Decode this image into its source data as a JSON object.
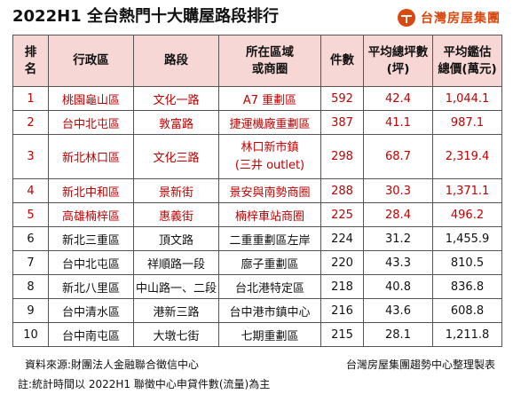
{
  "header": {
    "title": "2022H1 全台熱門十大購屋路段排行",
    "brand": "台灣房屋集團",
    "brand_color": "#d9480f"
  },
  "table": {
    "columns": [
      {
        "line1": "排",
        "line2": "名"
      },
      {
        "line1": "行政區",
        "line2": ""
      },
      {
        "line1": "路段",
        "line2": ""
      },
      {
        "line1": "所在區域",
        "line2": "或商圈"
      },
      {
        "line1": "件數",
        "line2": ""
      },
      {
        "line1": "平均總坪數",
        "line2": "(坪)"
      },
      {
        "line1": "平均鑑估",
        "line2": "總價(萬元)"
      }
    ],
    "header_bg": "#f6d7d5",
    "highlight_color": "#c00000",
    "rows": [
      {
        "rank": "1",
        "district": "桃園龜山區",
        "road": "文化一路",
        "area": "A7 重劃區",
        "area2": "",
        "count": "592",
        "avg_ping": "42.4",
        "avg_price": "1,044.1",
        "highlight": true
      },
      {
        "rank": "2",
        "district": "台中北屯區",
        "road": "敦富路",
        "area": "捷運機廠重劃區",
        "area2": "",
        "count": "387",
        "avg_ping": "41.1",
        "avg_price": "987.1",
        "highlight": true
      },
      {
        "rank": "3",
        "district": "新北林口區",
        "road": "文化三路",
        "area": "林口新市鎮",
        "area2": "(三井 outlet)",
        "count": "298",
        "avg_ping": "68.7",
        "avg_price": "2,319.4",
        "highlight": true
      },
      {
        "rank": "4",
        "district": "新北中和區",
        "road": "景新街",
        "area": "景安與南勢商圈",
        "area2": "",
        "count": "288",
        "avg_ping": "30.3",
        "avg_price": "1,371.1",
        "highlight": true
      },
      {
        "rank": "5",
        "district": "高雄楠梓區",
        "road": "惠義街",
        "area": "楠梓車站商圈",
        "area2": "",
        "count": "225",
        "avg_ping": "28.4",
        "avg_price": "496.2",
        "highlight": true
      },
      {
        "rank": "6",
        "district": "新北三重區",
        "road": "頂文路",
        "area": "二重重劃區左岸",
        "area2": "",
        "count": "224",
        "avg_ping": "31.2",
        "avg_price": "1,455.9",
        "highlight": false
      },
      {
        "rank": "7",
        "district": "台中北屯區",
        "road": "祥順路一段",
        "area": "廍子重劃區",
        "area2": "",
        "count": "220",
        "avg_ping": "43.3",
        "avg_price": "810.5",
        "highlight": false
      },
      {
        "rank": "8",
        "district": "新北八里區",
        "road": "中山路一、二段",
        "area": "台北港特定區",
        "area2": "",
        "count": "218",
        "avg_ping": "40.8",
        "avg_price": "836.8",
        "highlight": false
      },
      {
        "rank": "9",
        "district": "台中清水區",
        "road": "港新三路",
        "area": "台中港市鎮中心",
        "area2": "",
        "count": "216",
        "avg_ping": "43.6",
        "avg_price": "608.8",
        "highlight": false
      },
      {
        "rank": "10",
        "district": "台中南屯區",
        "road": "大墩七街",
        "area": "七期重劃區",
        "area2": "",
        "count": "215",
        "avg_ping": "28.1",
        "avg_price": "1,211.8",
        "highlight": false
      }
    ]
  },
  "footer": {
    "source": "資料來源:財團法人金融聯合徵信中心",
    "compiled_by": "台灣房屋集團趨勢中心整理製表",
    "note": "註:統計時間以 2022H1 聯徵中心申貸件數(流量)為主"
  }
}
